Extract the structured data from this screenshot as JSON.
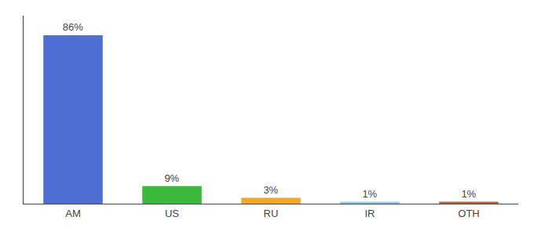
{
  "chart_data": {
    "type": "bar",
    "categories": [
      "AM",
      "US",
      "RU",
      "IR",
      "OTH"
    ],
    "values": [
      86,
      9,
      3,
      1,
      1
    ],
    "value_labels": [
      "86%",
      "9%",
      "3%",
      "1%",
      "1%"
    ],
    "colors": [
      "#4d6fd6",
      "#3dba3d",
      "#f5a623",
      "#87ceeb",
      "#b8643a"
    ],
    "ylim": [
      0,
      96
    ],
    "data_labels": true,
    "tick_labels": "x",
    "grid": false
  }
}
